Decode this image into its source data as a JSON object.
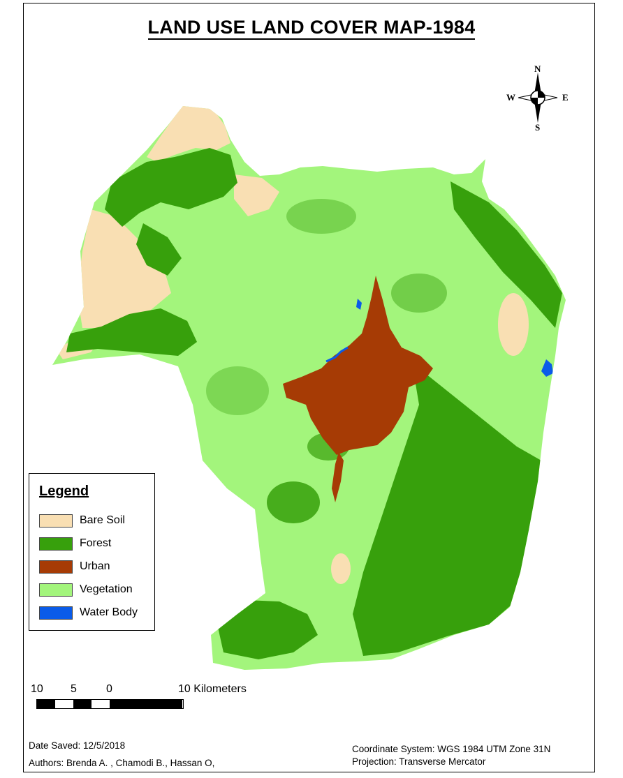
{
  "map": {
    "title": "LAND USE LAND COVER MAP-1984",
    "compass": {
      "n": "N",
      "s": "S",
      "e": "E",
      "w": "W"
    }
  },
  "legend": {
    "title": "Legend",
    "items": [
      {
        "label": "Bare Soil",
        "color": "#f9dfb3"
      },
      {
        "label": "Forest",
        "color": "#37a00c"
      },
      {
        "label": "Urban",
        "color": "#a63b05"
      },
      {
        "label": "Vegetation",
        "color": "#a3f57c"
      },
      {
        "label": "Water Body",
        "color": "#0a5be8"
      }
    ]
  },
  "scale": {
    "ticks": [
      "10",
      "5",
      "0"
    ],
    "end_label": "10 Kilometers"
  },
  "footer": {
    "date_saved": "Date Saved: 12/5/2018",
    "authors": "Authors: Brenda A. , Chamodi B., Hassan O,",
    "coordinate_system": "Coordinate System: WGS 1984 UTM Zone 31N",
    "projection": "Projection: Transverse Mercator"
  }
}
